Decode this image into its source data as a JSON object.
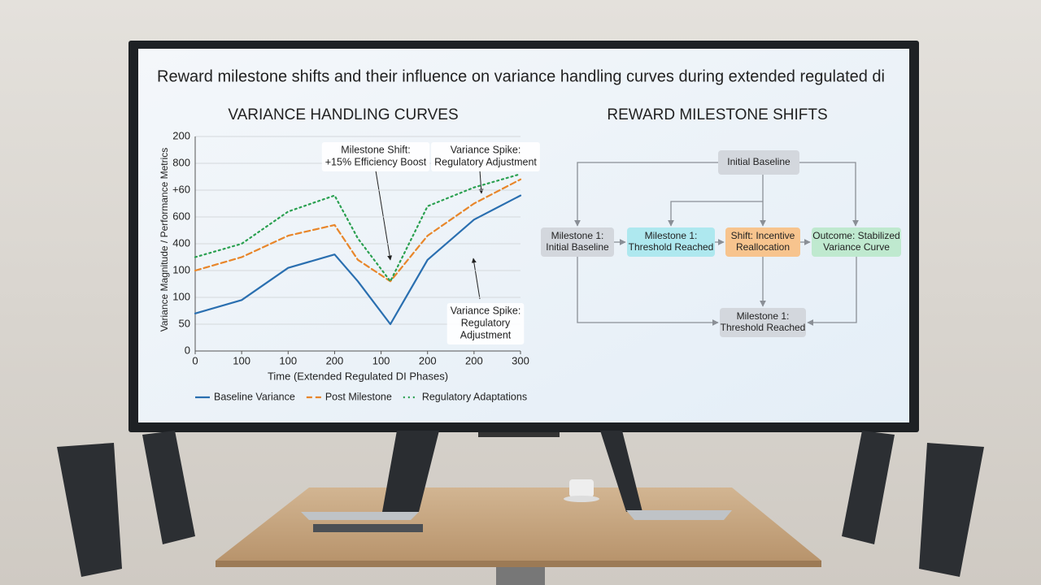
{
  "title": "Reward milestone shifts and their influence on variance handling curves during extended regulated di",
  "chart_data": {
    "type": "line",
    "title": "VARIANCE HANDLING CURVES",
    "x_label": "Time (Extended Regulated DI Phases)",
    "y_label": "Variance Magnitude / Performance Metrics",
    "x": [
      0,
      1,
      2,
      3,
      3.5,
      4.2,
      5,
      6,
      7
    ],
    "xlim": [
      0,
      7
    ],
    "xticks": [
      {
        "value": 0,
        "label": "0"
      },
      {
        "value": 1,
        "label": "100"
      },
      {
        "value": 2,
        "label": "100"
      },
      {
        "value": 3,
        "label": "200"
      },
      {
        "value": 4,
        "label": "100"
      },
      {
        "value": 5,
        "label": "200"
      },
      {
        "value": 6,
        "label": "200"
      },
      {
        "value": 7,
        "label": "300"
      }
    ],
    "ylim": [
      0,
      8
    ],
    "yticks": [
      {
        "value": 0,
        "label": "0"
      },
      {
        "value": 1,
        "label": "50"
      },
      {
        "value": 2,
        "label": "100"
      },
      {
        "value": 3,
        "label": "100"
      },
      {
        "value": 4,
        "label": "400"
      },
      {
        "value": 5,
        "label": "600"
      },
      {
        "value": 6,
        "label": "+60"
      },
      {
        "value": 7,
        "label": "800"
      },
      {
        "value": 8,
        "label": "200"
      }
    ],
    "grid": true,
    "series": [
      {
        "name": "Baseline Variance",
        "color": "#2a6fb0",
        "style": "solid",
        "values": [
          1.4,
          1.9,
          3.1,
          3.6,
          2.6,
          1.0,
          3.4,
          4.9,
          5.8
        ]
      },
      {
        "name": "Post Milestone",
        "color": "#e8862a",
        "style": "dashed",
        "values": [
          3.0,
          3.5,
          4.3,
          4.7,
          3.4,
          2.6,
          4.3,
          5.5,
          6.4
        ]
      },
      {
        "name": "Regulatory Adaptations",
        "color": "#2aa050",
        "style": "dotted",
        "values": [
          3.5,
          4.0,
          5.2,
          5.8,
          4.2,
          2.6,
          5.4,
          6.1,
          6.6
        ]
      }
    ],
    "annotations": [
      {
        "lines": [
          "Milestone Shift:",
          "+15% Efficiency Boost"
        ]
      },
      {
        "lines": [
          "Variance Spike:",
          "Regulatory Adjustment"
        ]
      },
      {
        "lines": [
          "Variance Spike:",
          "Regulatory",
          "Adjustment"
        ]
      }
    ]
  },
  "diagram": {
    "title": "REWARD MILESTONE SHIFTS",
    "nodes": [
      {
        "lines": [
          "Initial Baseline"
        ],
        "color": "#d3d7dd"
      },
      {
        "lines": [
          "Milestone 1:",
          "Initial Baseline"
        ],
        "color": "#d3d7dd"
      },
      {
        "lines": [
          "Milestone 1:",
          "Threshold Reached"
        ],
        "color": "#aee8ef"
      },
      {
        "lines": [
          "Shift: Incentive",
          "Reallocation"
        ],
        "color": "#f7c48e"
      },
      {
        "lines": [
          "Outcome: Stabilized",
          "Variance Curve"
        ],
        "color": "#bfe9cf"
      },
      {
        "lines": [
          "Milestone 1:",
          "Threshold Reached"
        ],
        "color": "#d3d7dd"
      }
    ]
  }
}
